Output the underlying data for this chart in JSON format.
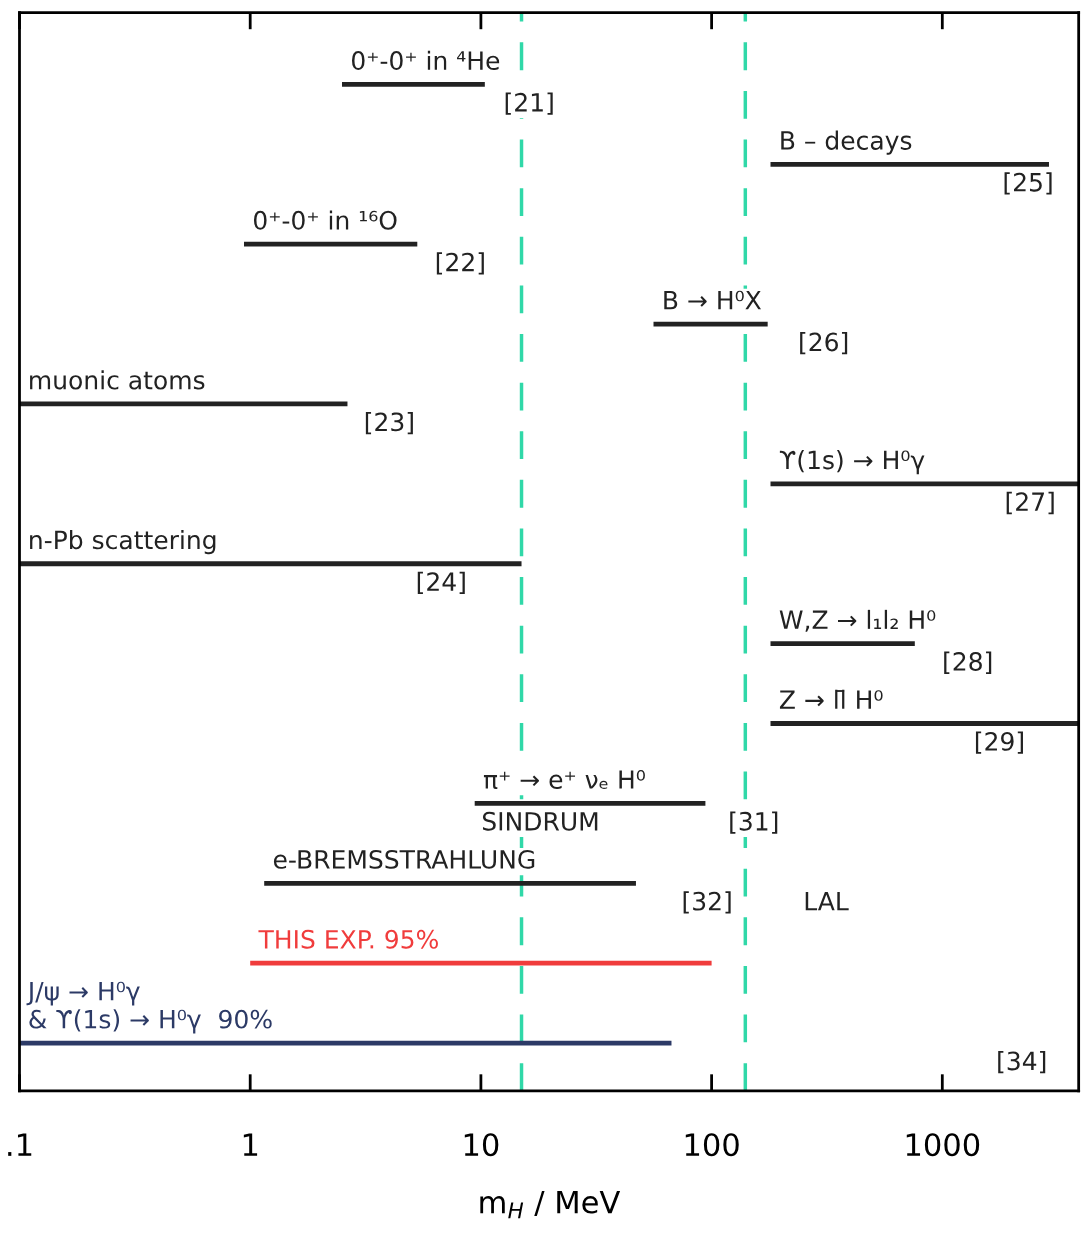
{
  "chart_data": {
    "type": "bar",
    "orientation": "horizontal",
    "xlabel": "m$_{H}$ / MeV",
    "log": "x",
    "categories": [
      null,
      null,
      null,
      null,
      null,
      null,
      null,
      null,
      null,
      null,
      null,
      null,
      null
    ],
    "base": [
      2.5,
      180,
      0.94,
      56,
      0.1,
      180,
      0.1,
      180,
      180,
      9.4,
      1.15,
      1.0,
      0.1
    ],
    "values": [
      7.9,
      2720,
      4.36,
      119,
      2.54,
      3720,
      14.9,
      580,
      3720,
      84.6,
      45.85,
      99,
      66.9
    ],
    "colors": [
      "#222222",
      "#222222",
      "#222222",
      "#222222",
      "#222222",
      "#222222",
      "#222222",
      "#222222",
      "#222222",
      "#222222",
      "#222222",
      "#f03c3c",
      "#2c3a66"
    ],
    "xlim": [
      0.1,
      3900
    ],
    "xticks": [
      {
        "value": 0.1,
        "label": ".1"
      },
      1,
      10,
      100,
      1000
    ],
    "tick_labels": "x",
    "grid": false,
    "legend": false,
    "ref_lines": [
      {
        "axis": "x",
        "value": 15,
        "color": "#30d8a8",
        "line_style": "dashed"
      },
      {
        "axis": "x",
        "value": 140,
        "color": "#30d8a8",
        "line_style": "dashed"
      }
    ],
    "annotations": [
      "0⁺-0⁺ in ⁴He",
      "[21]",
      "B – decays",
      "[25]",
      "0⁺-0⁺ in ¹⁶O",
      "[22]",
      "B → H⁰X",
      "[26]",
      "muonic atoms",
      "[23]",
      "ϒ(1s) → H⁰γ",
      "[27]",
      "n-Pb scattering",
      "[24]",
      "W,Z → l₁l₂ H⁰",
      "[28]",
      "Z → ll̄ H⁰",
      "[29]",
      "π⁺ → e⁺ νₑ H⁰",
      "[31]",
      "SINDRUM",
      "e-BREMSSTRAHLUNG",
      "[32]",
      "LAL",
      "THIS EXP. 95%",
      "J/ψ → H⁰γ\n& ϒ(1s) → H⁰γ  90%",
      "[34]"
    ]
  }
}
